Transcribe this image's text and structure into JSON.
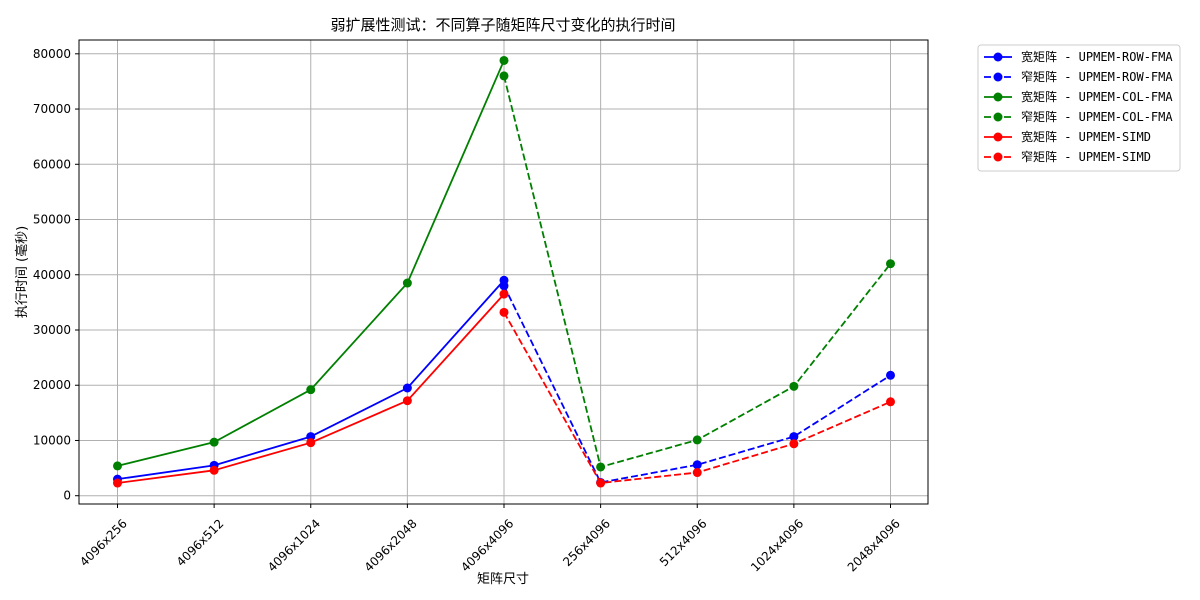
{
  "chart_data": {
    "type": "line",
    "title": "弱扩展性测试：不同算子随矩阵尺寸变化的执行时间",
    "xlabel": "矩阵尺寸",
    "ylabel": "执行时间 (毫秒)",
    "categories": [
      "4096x256",
      "4096x512",
      "4096x1024",
      "4096x2048",
      "4096x4096",
      "256x4096",
      "512x4096",
      "1024x4096",
      "2048x4096"
    ],
    "ylim": [
      -1500,
      82500
    ],
    "yticks": [
      0,
      10000,
      20000,
      30000,
      40000,
      50000,
      60000,
      70000,
      80000
    ],
    "grid": true,
    "legend_position": "outside-top-right",
    "series": [
      {
        "name": "宽矩阵 - UPMEM-ROW-FMA",
        "color": "#0000ff",
        "dash": "solid",
        "points": [
          [
            "4096x256",
            3000
          ],
          [
            "4096x512",
            5500
          ],
          [
            "4096x1024",
            10700
          ],
          [
            "4096x2048",
            19500
          ],
          [
            "4096x4096",
            39000
          ]
        ]
      },
      {
        "name": "窄矩阵 - UPMEM-ROW-FMA",
        "color": "#0000ff",
        "dash": "dashed",
        "points": [
          [
            "4096x4096",
            38000
          ],
          [
            "256x4096",
            2400
          ],
          [
            "512x4096",
            5600
          ],
          [
            "1024x4096",
            10700
          ],
          [
            "2048x4096",
            21800
          ]
        ]
      },
      {
        "name": "宽矩阵 - UPMEM-COL-FMA",
        "color": "#008000",
        "dash": "solid",
        "points": [
          [
            "4096x256",
            5400
          ],
          [
            "4096x512",
            9700
          ],
          [
            "4096x1024",
            19200
          ],
          [
            "4096x2048",
            38500
          ],
          [
            "4096x4096",
            78800
          ]
        ]
      },
      {
        "name": "窄矩阵 - UPMEM-COL-FMA",
        "color": "#008000",
        "dash": "dashed",
        "points": [
          [
            "4096x4096",
            76000
          ],
          [
            "256x4096",
            5200
          ],
          [
            "512x4096",
            10100
          ],
          [
            "1024x4096",
            19800
          ],
          [
            "2048x4096",
            42000
          ]
        ]
      },
      {
        "name": "宽矩阵 - UPMEM-SIMD",
        "color": "#ff0000",
        "dash": "solid",
        "points": [
          [
            "4096x256",
            2300
          ],
          [
            "4096x512",
            4600
          ],
          [
            "4096x1024",
            9600
          ],
          [
            "4096x2048",
            17200
          ],
          [
            "4096x4096",
            36500
          ]
        ]
      },
      {
        "name": "窄矩阵 - UPMEM-SIMD",
        "color": "#ff0000",
        "dash": "dashed",
        "points": [
          [
            "4096x4096",
            33200
          ],
          [
            "256x4096",
            2300
          ],
          [
            "512x4096",
            4200
          ],
          [
            "1024x4096",
            9400
          ],
          [
            "2048x4096",
            17000
          ]
        ]
      }
    ]
  }
}
